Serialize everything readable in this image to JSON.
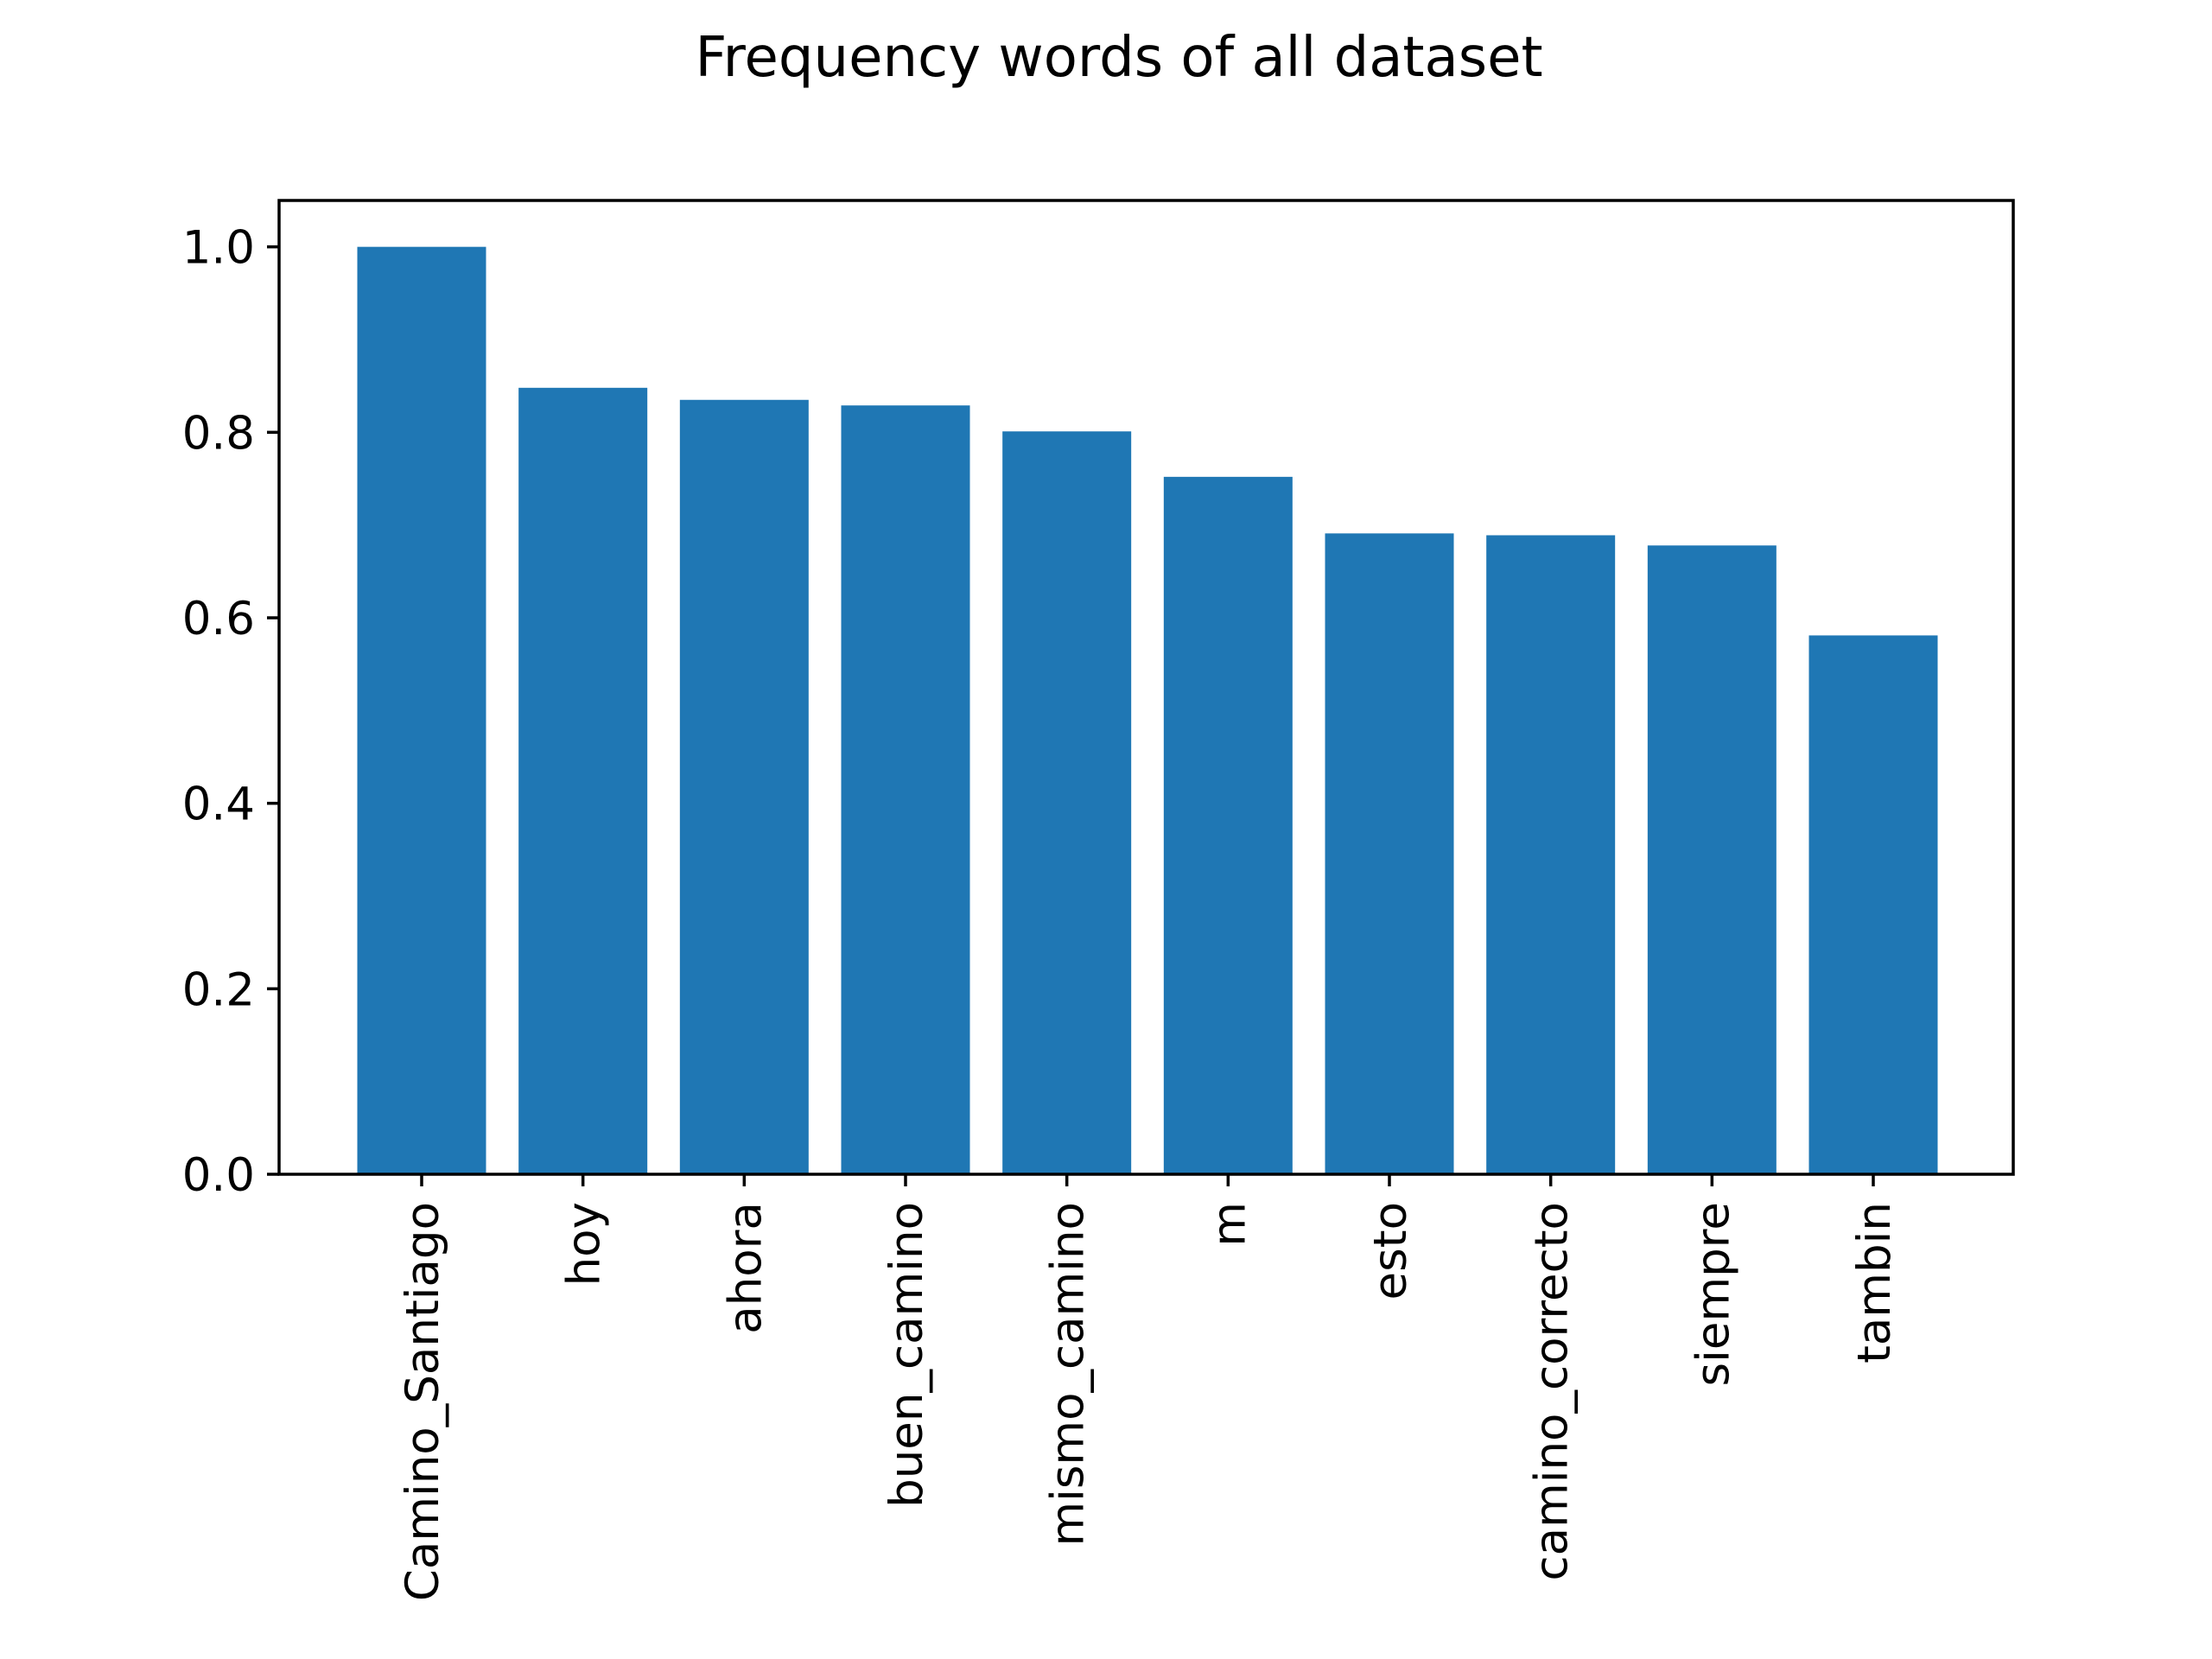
{
  "chart_data": {
    "type": "bar",
    "title": "Frequency words of all dataset",
    "xlabel": "",
    "ylabel": "",
    "categories": [
      "Camino_Santiago",
      "hoy",
      "ahora",
      "buen_camino",
      "mismo_camino",
      "m",
      "esto",
      "camino_correcto",
      "siempre",
      "tambin"
    ],
    "values": [
      1.0,
      0.848,
      0.835,
      0.829,
      0.801,
      0.752,
      0.691,
      0.689,
      0.678,
      0.581
    ],
    "ylim": [
      0,
      1.05
    ],
    "yticks": [
      0.0,
      0.2,
      0.4,
      0.6,
      0.8,
      1.0
    ],
    "ytick_labels": [
      "0.0",
      "0.2",
      "0.4",
      "0.6",
      "0.8",
      "1.0"
    ],
    "bar_color": "#1f77b4",
    "grid": false,
    "legend": "none"
  }
}
